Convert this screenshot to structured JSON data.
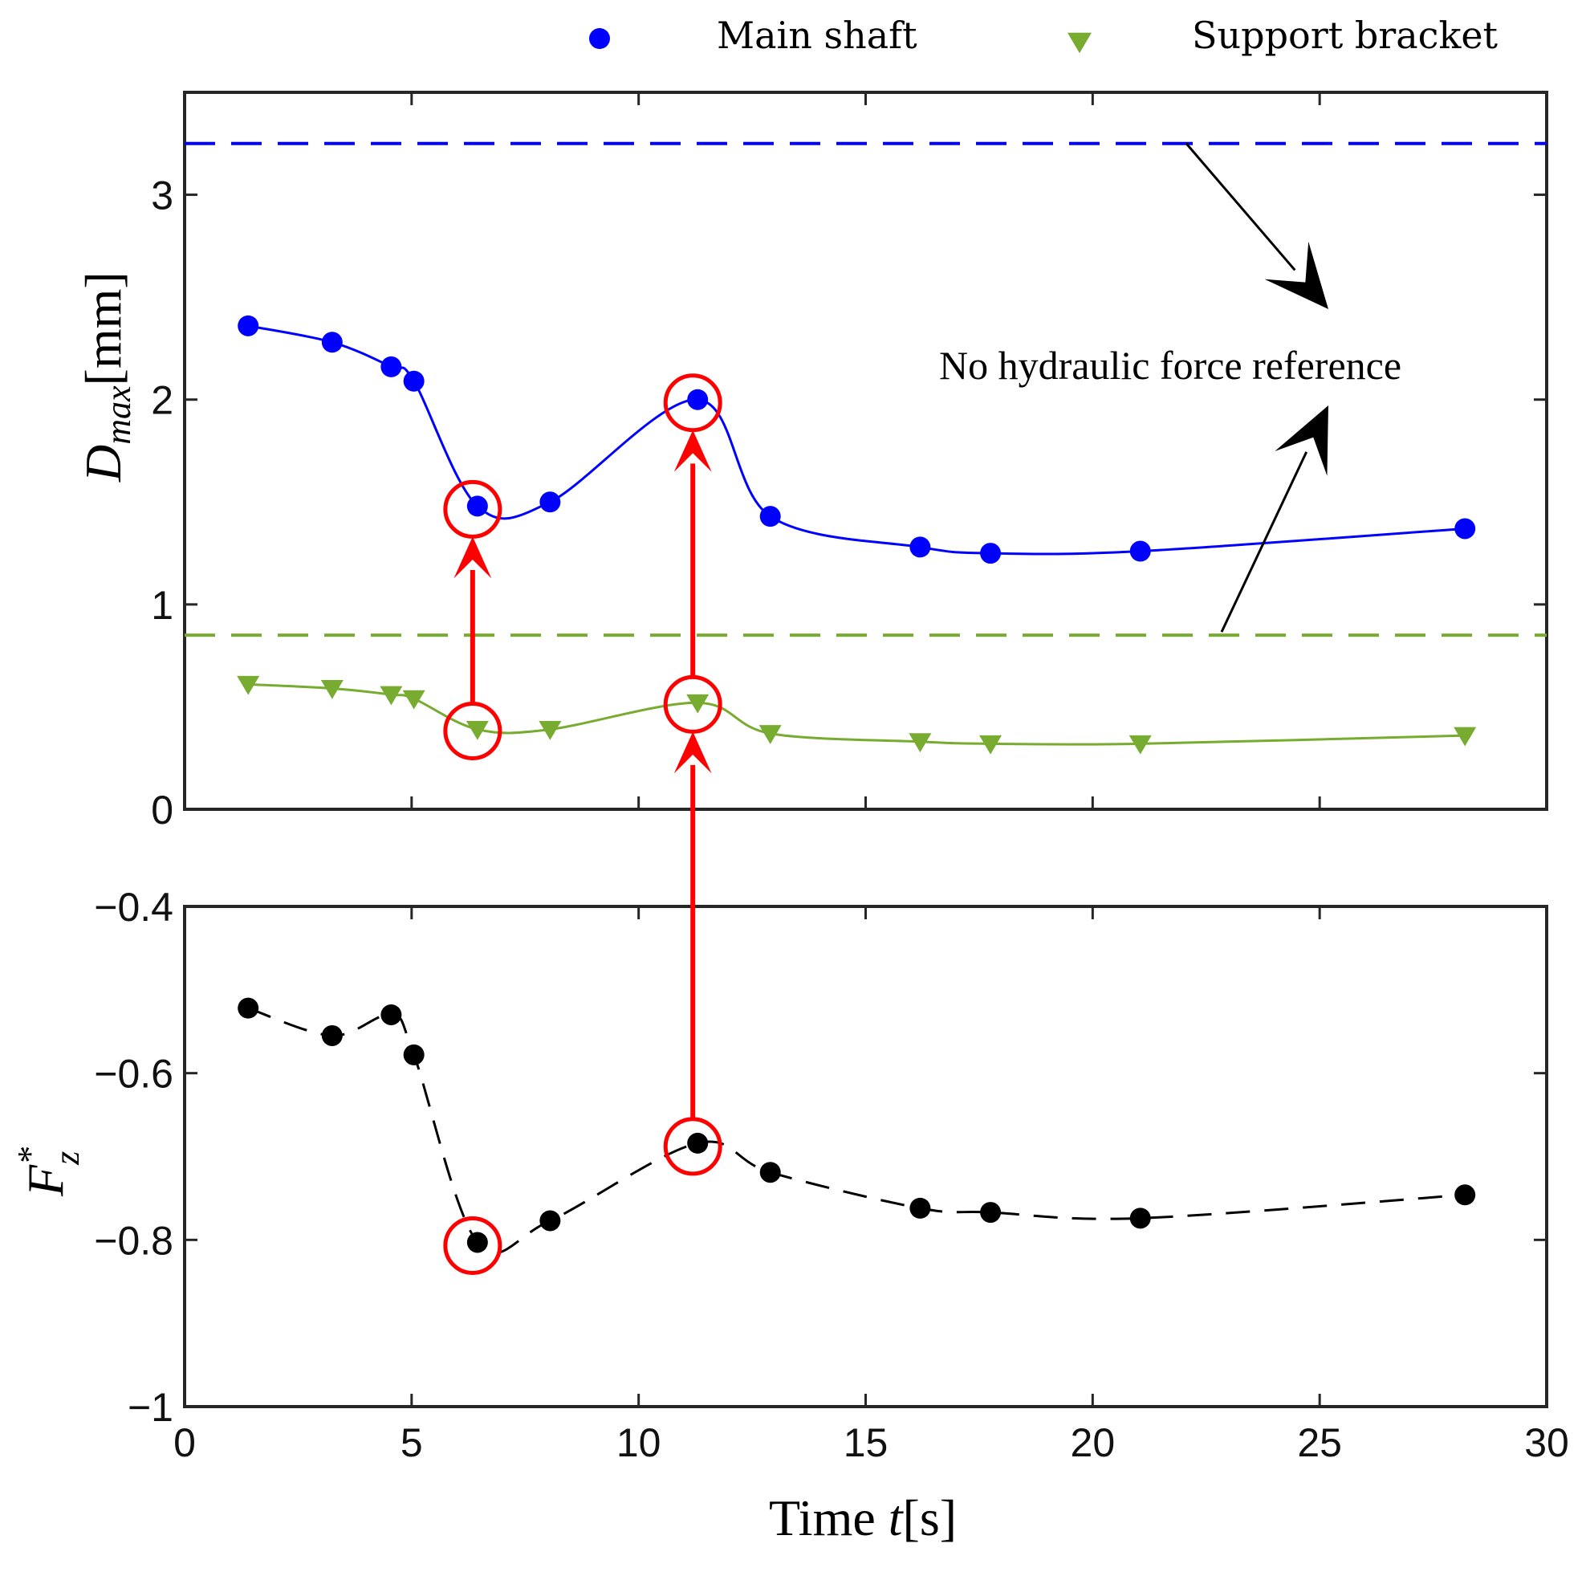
{
  "colors": {
    "main_shaft": "#0000ff",
    "support_bracket": "#77ac30",
    "force": "#000000",
    "highlight": "#ff0000",
    "axes": "#262626"
  },
  "legend": {
    "items": [
      {
        "label": "Main shaft",
        "marker": "circle",
        "color": "#0000ff"
      },
      {
        "label": "Support bracket",
        "marker": "triangle-down",
        "color": "#77ac30"
      }
    ]
  },
  "annotation": {
    "text": "No hydraulic force reference"
  },
  "chart_data": [
    {
      "type": "line",
      "panel": "top",
      "ylabel": {
        "main": "D",
        "subscript": "max",
        "unit": "[mm]"
      },
      "ylim": [
        0,
        3.5
      ],
      "yticks": [
        "0",
        "1",
        "2",
        "3"
      ],
      "xlim": [
        0,
        30
      ],
      "series": [
        {
          "name": "Main shaft",
          "marker": "circle",
          "x": [
            1.4,
            3.25,
            4.55,
            5.05,
            6.45,
            8.05,
            11.3,
            12.9,
            16.2,
            17.75,
            21.05,
            28.2
          ],
          "y": [
            2.36,
            2.28,
            2.16,
            2.09,
            1.48,
            1.5,
            2.0,
            1.43,
            1.28,
            1.25,
            1.26,
            1.37
          ]
        },
        {
          "name": "Support bracket",
          "marker": "triangle-down",
          "x": [
            1.4,
            3.25,
            4.55,
            5.05,
            6.45,
            8.05,
            11.3,
            12.9,
            16.2,
            17.75,
            21.05,
            28.2
          ],
          "y": [
            0.61,
            0.59,
            0.56,
            0.54,
            0.39,
            0.39,
            0.52,
            0.37,
            0.33,
            0.32,
            0.32,
            0.36
          ]
        }
      ],
      "reference_lines": [
        {
          "series": "Main shaft",
          "y": 3.25,
          "style": "dashed"
        },
        {
          "series": "Support bracket",
          "y": 0.85,
          "style": "dashed"
        }
      ]
    },
    {
      "type": "line",
      "panel": "bottom",
      "ylabel": {
        "main": "F",
        "superscript": "*",
        "subscript": "z"
      },
      "xlabel": {
        "main": "Time ",
        "italic": "t",
        "unit": "[s]"
      },
      "ylim": [
        -1,
        -0.4
      ],
      "yticks": [
        "−1",
        "−0.8",
        "−0.6",
        "−0.4"
      ],
      "xlim": [
        0,
        30
      ],
      "xticks": [
        "0",
        "5",
        "10",
        "15",
        "20",
        "25",
        "30"
      ],
      "series": [
        {
          "marker": "circle",
          "style": "dashed",
          "x": [
            1.4,
            3.25,
            4.55,
            5.05,
            6.45,
            8.05,
            11.3,
            12.9,
            16.2,
            17.75,
            21.05,
            28.2
          ],
          "y": [
            -0.522,
            -0.555,
            -0.53,
            -0.578,
            -0.803,
            -0.777,
            -0.684,
            -0.719,
            -0.762,
            -0.767,
            -0.774,
            -0.746
          ]
        }
      ]
    }
  ]
}
